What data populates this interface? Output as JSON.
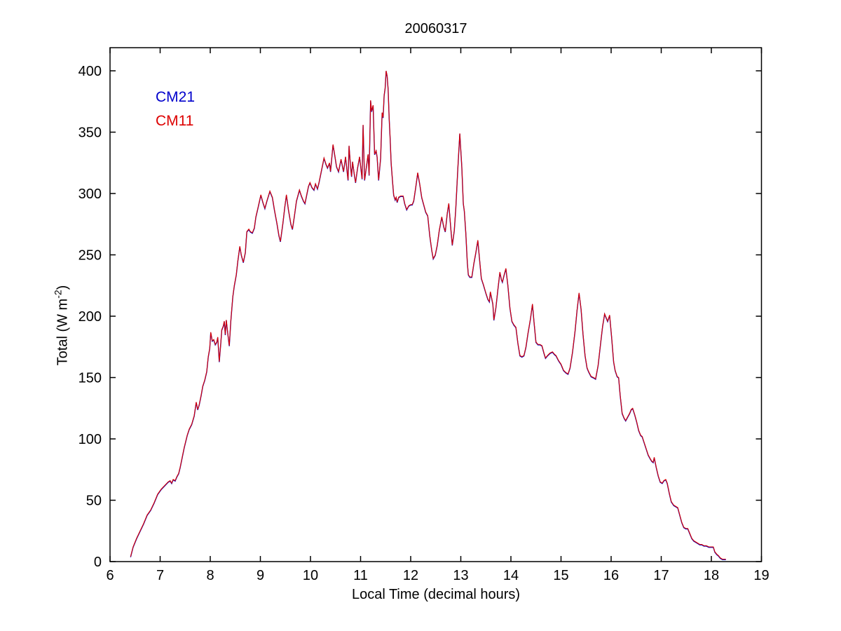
{
  "figure": {
    "title": "20060317",
    "xlabel": "Local Time (decimal hours)",
    "ylabel_main": "Total (W m",
    "ylabel_sup": "-2",
    "ylabel_close": ")",
    "legend": [
      {
        "label": "CM21",
        "color": "#0000CC"
      },
      {
        "label": "CM11",
        "color": "#DD0000"
      }
    ]
  },
  "chart_data": {
    "type": "line",
    "title": "20060317",
    "xlabel": "Local Time (decimal hours)",
    "ylabel": "Total (W m⁻²)",
    "xlim": [
      6,
      19
    ],
    "ylim": [
      0,
      419
    ],
    "xticks": [
      6,
      7,
      8,
      9,
      10,
      11,
      12,
      13,
      14,
      15,
      16,
      17,
      18,
      19
    ],
    "yticks": [
      0,
      50,
      100,
      150,
      200,
      250,
      300,
      350,
      400
    ],
    "grid": false,
    "legend_position": "upper-left-inside",
    "series": [
      {
        "name": "CM21",
        "color": "#0000BB",
        "points": "shared_points"
      },
      {
        "name": "CM11",
        "color": "#DD0000",
        "points": "shared_points"
      }
    ],
    "shared_points": [
      [
        6.41,
        4
      ],
      [
        6.46,
        12
      ],
      [
        6.53,
        19
      ],
      [
        6.6,
        25
      ],
      [
        6.67,
        31
      ],
      [
        6.74,
        38
      ],
      [
        6.81,
        42
      ],
      [
        6.88,
        48
      ],
      [
        6.95,
        55
      ],
      [
        7.02,
        59
      ],
      [
        7.09,
        62
      ],
      [
        7.16,
        65
      ],
      [
        7.2,
        66
      ],
      [
        7.23,
        64
      ],
      [
        7.26,
        67
      ],
      [
        7.3,
        66
      ],
      [
        7.33,
        69
      ],
      [
        7.37,
        72
      ],
      [
        7.4,
        77
      ],
      [
        7.44,
        85
      ],
      [
        7.48,
        93
      ],
      [
        7.51,
        98
      ],
      [
        7.54,
        103
      ],
      [
        7.58,
        108
      ],
      [
        7.63,
        112
      ],
      [
        7.68,
        119
      ],
      [
        7.72,
        130
      ],
      [
        7.75,
        124
      ],
      [
        7.78,
        128
      ],
      [
        7.82,
        136
      ],
      [
        7.85,
        143
      ],
      [
        7.89,
        148
      ],
      [
        7.93,
        155
      ],
      [
        7.96,
        167
      ],
      [
        7.99,
        174
      ],
      [
        8.01,
        187
      ],
      [
        8.04,
        180
      ],
      [
        8.07,
        181
      ],
      [
        8.1,
        177
      ],
      [
        8.13,
        179
      ],
      [
        8.15,
        183
      ],
      [
        8.18,
        163
      ],
      [
        8.21,
        178
      ],
      [
        8.23,
        189
      ],
      [
        8.26,
        192
      ],
      [
        8.28,
        196
      ],
      [
        8.3,
        185
      ],
      [
        8.32,
        197
      ],
      [
        8.35,
        186
      ],
      [
        8.38,
        176
      ],
      [
        8.41,
        196
      ],
      [
        8.45,
        216
      ],
      [
        8.48,
        225
      ],
      [
        8.52,
        234
      ],
      [
        8.55,
        245
      ],
      [
        8.59,
        257
      ],
      [
        8.62,
        250
      ],
      [
        8.66,
        244
      ],
      [
        8.7,
        252
      ],
      [
        8.73,
        269
      ],
      [
        8.77,
        271
      ],
      [
        8.8,
        269
      ],
      [
        8.84,
        268
      ],
      [
        8.88,
        272
      ],
      [
        8.91,
        281
      ],
      [
        8.95,
        288
      ],
      [
        9.01,
        299
      ],
      [
        9.05,
        293
      ],
      [
        9.09,
        288
      ],
      [
        9.13,
        294
      ],
      [
        9.19,
        302
      ],
      [
        9.24,
        297
      ],
      [
        9.28,
        287
      ],
      [
        9.33,
        276
      ],
      [
        9.37,
        266
      ],
      [
        9.4,
        261
      ],
      [
        9.45,
        276
      ],
      [
        9.49,
        290
      ],
      [
        9.52,
        299
      ],
      [
        9.56,
        287
      ],
      [
        9.61,
        275
      ],
      [
        9.64,
        271
      ],
      [
        9.68,
        282
      ],
      [
        9.72,
        294
      ],
      [
        9.78,
        303
      ],
      [
        9.82,
        298
      ],
      [
        9.86,
        294
      ],
      [
        9.89,
        292
      ],
      [
        9.93,
        300
      ],
      [
        9.96,
        306
      ],
      [
        9.99,
        309
      ],
      [
        10.03,
        305
      ],
      [
        10.07,
        303
      ],
      [
        10.1,
        308
      ],
      [
        10.14,
        304
      ],
      [
        10.17,
        309
      ],
      [
        10.21,
        317
      ],
      [
        10.27,
        329
      ],
      [
        10.31,
        324
      ],
      [
        10.34,
        321
      ],
      [
        10.38,
        325
      ],
      [
        10.4,
        318
      ],
      [
        10.45,
        340
      ],
      [
        10.49,
        330
      ],
      [
        10.52,
        322
      ],
      [
        10.56,
        318
      ],
      [
        10.61,
        328
      ],
      [
        10.66,
        318
      ],
      [
        10.7,
        330
      ],
      [
        10.75,
        311
      ],
      [
        10.77,
        339
      ],
      [
        10.8,
        322
      ],
      [
        10.82,
        314
      ],
      [
        10.84,
        326
      ],
      [
        10.87,
        317
      ],
      [
        10.9,
        309
      ],
      [
        10.94,
        321
      ],
      [
        10.98,
        330
      ],
      [
        11.03,
        312
      ],
      [
        11.05,
        356
      ],
      [
        11.08,
        311
      ],
      [
        11.11,
        320
      ],
      [
        11.15,
        332
      ],
      [
        11.17,
        315
      ],
      [
        11.2,
        376
      ],
      [
        11.22,
        367
      ],
      [
        11.25,
        372
      ],
      [
        11.28,
        332
      ],
      [
        11.31,
        335
      ],
      [
        11.33,
        330
      ],
      [
        11.36,
        311
      ],
      [
        11.4,
        329
      ],
      [
        11.43,
        366
      ],
      [
        11.45,
        362
      ],
      [
        11.47,
        380
      ],
      [
        11.49,
        386
      ],
      [
        11.51,
        400
      ],
      [
        11.53,
        396
      ],
      [
        11.55,
        385
      ],
      [
        11.57,
        362
      ],
      [
        11.59,
        345
      ],
      [
        11.61,
        325
      ],
      [
        11.64,
        309
      ],
      [
        11.66,
        299
      ],
      [
        11.69,
        295
      ],
      [
        11.71,
        297
      ],
      [
        11.73,
        293
      ],
      [
        11.76,
        297
      ],
      [
        11.8,
        298
      ],
      [
        11.85,
        298
      ],
      [
        11.88,
        292
      ],
      [
        11.92,
        287
      ],
      [
        11.96,
        290
      ],
      [
        12.0,
        291
      ],
      [
        12.03,
        291
      ],
      [
        12.06,
        294
      ],
      [
        12.1,
        305
      ],
      [
        12.14,
        317
      ],
      [
        12.18,
        308
      ],
      [
        12.22,
        297
      ],
      [
        12.26,
        291
      ],
      [
        12.3,
        285
      ],
      [
        12.34,
        282
      ],
      [
        12.38,
        266
      ],
      [
        12.42,
        254
      ],
      [
        12.45,
        247
      ],
      [
        12.49,
        250
      ],
      [
        12.53,
        258
      ],
      [
        12.57,
        270
      ],
      [
        12.62,
        281
      ],
      [
        12.66,
        273
      ],
      [
        12.69,
        269
      ],
      [
        12.73,
        284
      ],
      [
        12.76,
        292
      ],
      [
        12.8,
        272
      ],
      [
        12.83,
        258
      ],
      [
        12.87,
        270
      ],
      [
        12.9,
        288
      ],
      [
        12.94,
        320
      ],
      [
        12.98,
        349
      ],
      [
        13.02,
        322
      ],
      [
        13.05,
        292
      ],
      [
        13.07,
        286
      ],
      [
        13.1,
        268
      ],
      [
        13.13,
        244
      ],
      [
        13.15,
        234
      ],
      [
        13.18,
        232
      ],
      [
        13.22,
        232
      ],
      [
        13.26,
        243
      ],
      [
        13.3,
        252
      ],
      [
        13.34,
        262
      ],
      [
        13.38,
        244
      ],
      [
        13.41,
        231
      ],
      [
        13.45,
        226
      ],
      [
        13.5,
        219
      ],
      [
        13.54,
        214
      ],
      [
        13.57,
        212
      ],
      [
        13.59,
        220
      ],
      [
        13.62,
        214
      ],
      [
        13.64,
        210
      ],
      [
        13.66,
        197
      ],
      [
        13.7,
        207
      ],
      [
        13.74,
        222
      ],
      [
        13.78,
        236
      ],
      [
        13.81,
        230
      ],
      [
        13.83,
        228
      ],
      [
        13.86,
        233
      ],
      [
        13.9,
        239
      ],
      [
        13.94,
        225
      ],
      [
        13.98,
        207
      ],
      [
        14.02,
        196
      ],
      [
        14.06,
        193
      ],
      [
        14.1,
        191
      ],
      [
        14.14,
        178
      ],
      [
        14.18,
        168
      ],
      [
        14.22,
        167
      ],
      [
        14.26,
        168
      ],
      [
        14.3,
        175
      ],
      [
        14.34,
        186
      ],
      [
        14.39,
        198
      ],
      [
        14.43,
        210
      ],
      [
        14.46,
        196
      ],
      [
        14.5,
        179
      ],
      [
        14.54,
        177
      ],
      [
        14.58,
        177
      ],
      [
        14.62,
        176
      ],
      [
        14.66,
        170
      ],
      [
        14.69,
        166
      ],
      [
        14.73,
        168
      ],
      [
        14.78,
        170
      ],
      [
        14.83,
        171
      ],
      [
        14.87,
        169
      ],
      [
        14.9,
        168
      ],
      [
        14.95,
        164
      ],
      [
        15.0,
        161
      ],
      [
        15.05,
        156
      ],
      [
        15.1,
        154
      ],
      [
        15.14,
        153
      ],
      [
        15.18,
        158
      ],
      [
        15.23,
        171
      ],
      [
        15.28,
        188
      ],
      [
        15.32,
        205
      ],
      [
        15.36,
        219
      ],
      [
        15.4,
        206
      ],
      [
        15.44,
        185
      ],
      [
        15.48,
        168
      ],
      [
        15.52,
        158
      ],
      [
        15.55,
        155
      ],
      [
        15.6,
        151
      ],
      [
        15.65,
        150
      ],
      [
        15.69,
        149
      ],
      [
        15.74,
        160
      ],
      [
        15.79,
        178
      ],
      [
        15.83,
        192
      ],
      [
        15.87,
        202
      ],
      [
        15.9,
        199
      ],
      [
        15.93,
        196
      ],
      [
        15.97,
        201
      ],
      [
        16.01,
        183
      ],
      [
        16.05,
        163
      ],
      [
        16.08,
        156
      ],
      [
        16.12,
        151
      ],
      [
        16.15,
        150
      ],
      [
        16.18,
        136
      ],
      [
        16.22,
        121
      ],
      [
        16.26,
        117
      ],
      [
        16.29,
        115
      ],
      [
        16.33,
        118
      ],
      [
        16.37,
        121
      ],
      [
        16.4,
        124
      ],
      [
        16.43,
        125
      ],
      [
        16.47,
        120
      ],
      [
        16.51,
        114
      ],
      [
        16.55,
        107
      ],
      [
        16.59,
        103
      ],
      [
        16.62,
        102
      ],
      [
        16.66,
        97
      ],
      [
        16.7,
        92
      ],
      [
        16.74,
        87
      ],
      [
        16.78,
        84
      ],
      [
        16.81,
        82
      ],
      [
        16.84,
        81
      ],
      [
        16.86,
        85
      ],
      [
        16.9,
        77
      ],
      [
        16.94,
        70
      ],
      [
        16.98,
        65
      ],
      [
        17.02,
        64
      ],
      [
        17.05,
        66
      ],
      [
        17.09,
        67
      ],
      [
        17.12,
        64
      ],
      [
        17.16,
        56
      ],
      [
        17.2,
        49
      ],
      [
        17.25,
        46
      ],
      [
        17.29,
        45
      ],
      [
        17.33,
        44
      ],
      [
        17.37,
        38
      ],
      [
        17.41,
        32
      ],
      [
        17.45,
        28
      ],
      [
        17.49,
        27
      ],
      [
        17.53,
        27
      ],
      [
        17.57,
        23
      ],
      [
        17.61,
        19
      ],
      [
        17.65,
        17
      ],
      [
        17.69,
        16
      ],
      [
        17.73,
        15
      ],
      [
        17.77,
        14
      ],
      [
        17.81,
        14
      ],
      [
        17.85,
        13
      ],
      [
        17.9,
        13
      ],
      [
        17.95,
        12
      ],
      [
        18.0,
        12
      ],
      [
        18.04,
        12
      ],
      [
        18.07,
        8
      ],
      [
        18.11,
        6
      ],
      [
        18.14,
        5
      ],
      [
        18.18,
        3
      ],
      [
        18.22,
        2
      ],
      [
        18.26,
        2
      ],
      [
        18.29,
        2
      ]
    ]
  }
}
